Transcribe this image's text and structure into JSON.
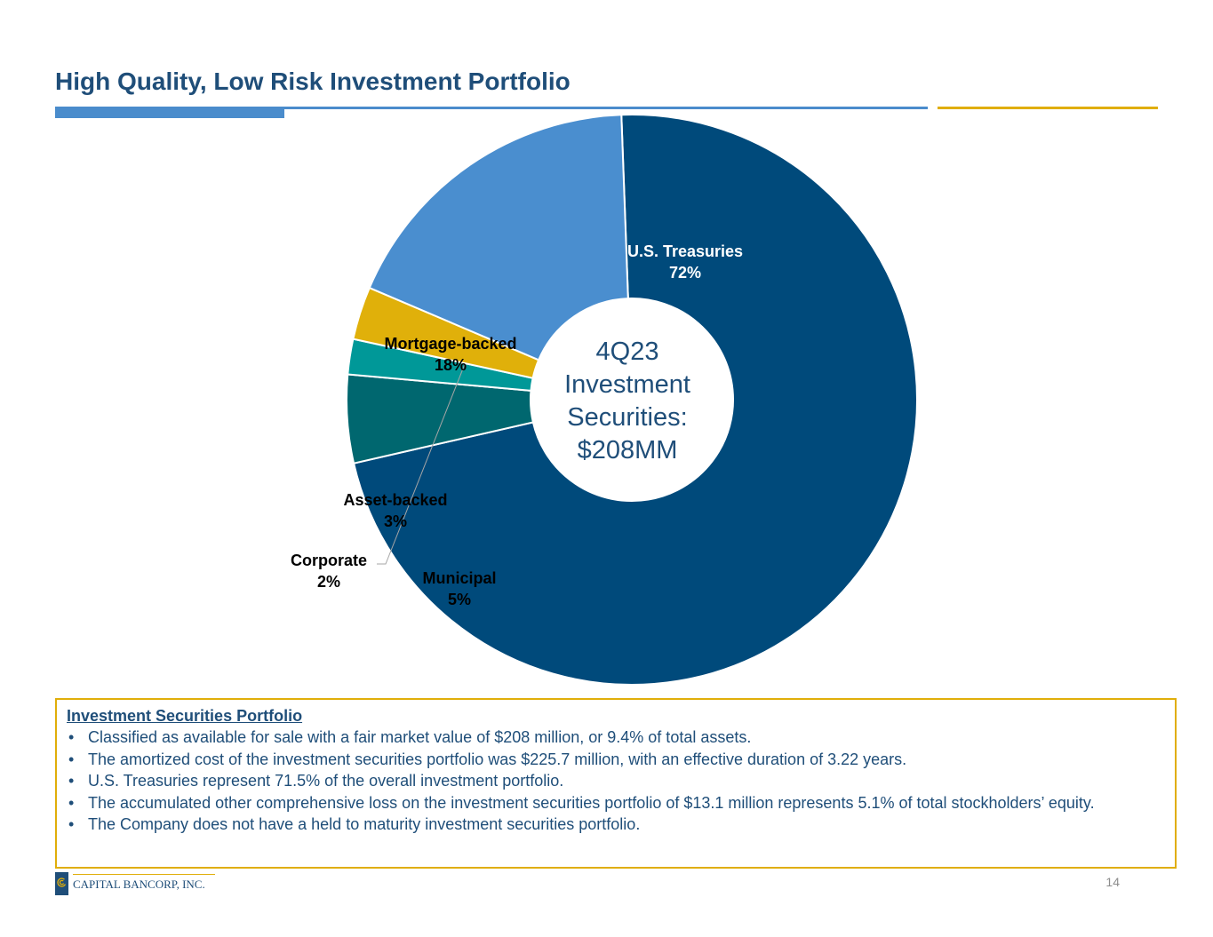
{
  "header": {
    "title": "High Quality, Low Risk Investment Portfolio"
  },
  "colors": {
    "title": "#1f4e79",
    "accent_blue": "#4a8ccc",
    "accent_gold": "#e0ae0a"
  },
  "chart_data": {
    "type": "pie",
    "style": "donut",
    "center_label": [
      "4Q23",
      "Investment",
      "Securities:",
      "$208MM"
    ],
    "slices": [
      {
        "label": "U.S. Treasuries",
        "value": 72,
        "display": "72%",
        "color": "#004a7b"
      },
      {
        "label": "Municipal",
        "value": 5,
        "display": "5%",
        "color": "#00676f"
      },
      {
        "label": "Corporate",
        "value": 2,
        "display": "2%",
        "color": "#009898"
      },
      {
        "label": "Asset-backed",
        "value": 3,
        "display": "3%",
        "color": "#e0b00a"
      },
      {
        "label": "Mortgage-backed",
        "value": 18,
        "display": "18%",
        "color": "#4a8ecf"
      }
    ]
  },
  "summary": {
    "heading": "Investment Securities Portfolio",
    "bullets": [
      "Classified as available for sale with a fair market value of $208 million, or 9.4% of total assets.",
      "The amortized cost of the investment securities portfolio was $225.7 million, with an effective duration of 3.22 years.",
      "U.S. Treasuries represent 71.5% of the overall investment portfolio.",
      "The accumulated other comprehensive loss on the investment securities portfolio of $13.1 million represents 5.1% of total stockholders’ equity.",
      "The Company does not have a held to maturity investment securities portfolio."
    ]
  },
  "footer": {
    "logo_text": "CAPITAL BANCORP, INC.",
    "page_number": "14"
  }
}
